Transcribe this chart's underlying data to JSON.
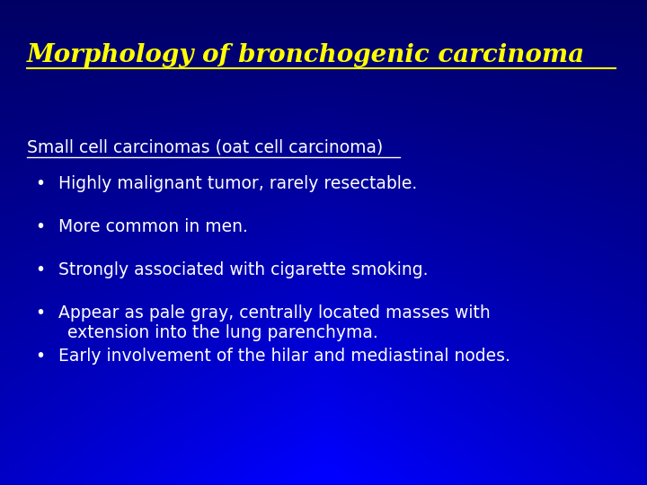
{
  "title": "Morphology of bronchogenic carcinoma",
  "title_color": "#FFFF00",
  "title_fontsize": 20,
  "bg_color": "#0000CC",
  "subtitle": "Small cell carcinomas (oat cell carcinoma)",
  "subtitle_color": "#FFFFFF",
  "subtitle_fontsize": 13.5,
  "bullet_color": "#FFFFFF",
  "bullet_fontsize": 13.5,
  "bullet1": "Highly malignant tumor, rarely resectable.",
  "bullet2": "More common in men.",
  "bullet3": "Strongly associated with cigarette smoking.",
  "bullet4a": "Appear as pale gray, centrally located masses with",
  "bullet4b": "extension into the lung parenchyma.",
  "bullet5": "Early involvement of the hilar and mediastinal nodes."
}
